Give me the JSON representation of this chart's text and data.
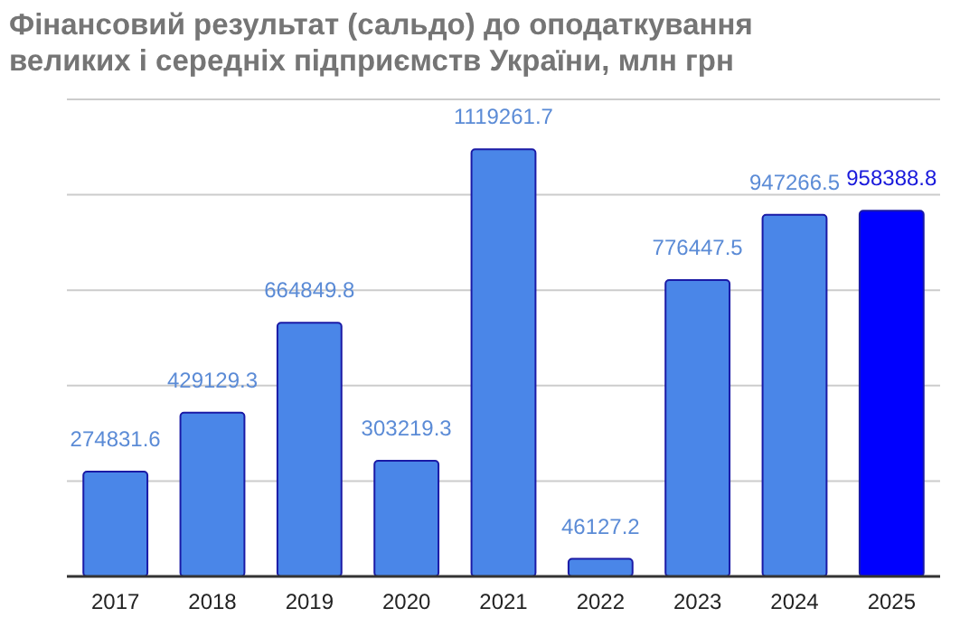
{
  "chart_data": {
    "type": "bar",
    "title": "Фінансовий результат (сальдо) до оподаткування великих і середніх підприємств України, млн грн",
    "categories": [
      "2017",
      "2018",
      "2019",
      "2020",
      "2021",
      "2022",
      "2023",
      "2024",
      "2025"
    ],
    "values": [
      274831.6,
      429129.3,
      664849.8,
      303219.3,
      1119261.7,
      46127.2,
      776447.5,
      947266.5,
      958388.8
    ],
    "colors": [
      "#4a86e8",
      "#4a86e8",
      "#4a86e8",
      "#4a86e8",
      "#4a86e8",
      "#4a86e8",
      "#4a86e8",
      "#4a86e8",
      "#0000ff"
    ],
    "ylim": [
      0,
      1250000
    ],
    "yticks": [
      {
        "value": 0,
        "label": null
      },
      {
        "value": 250000,
        "label": null
      },
      {
        "value": 500000,
        "label": null
      },
      {
        "value": 750000,
        "label": null
      },
      {
        "value": 1000000,
        "label": null
      },
      {
        "value": 1250000,
        "label": null
      }
    ],
    "grid": "y",
    "tick_labels": "x",
    "data_labels": true
  }
}
